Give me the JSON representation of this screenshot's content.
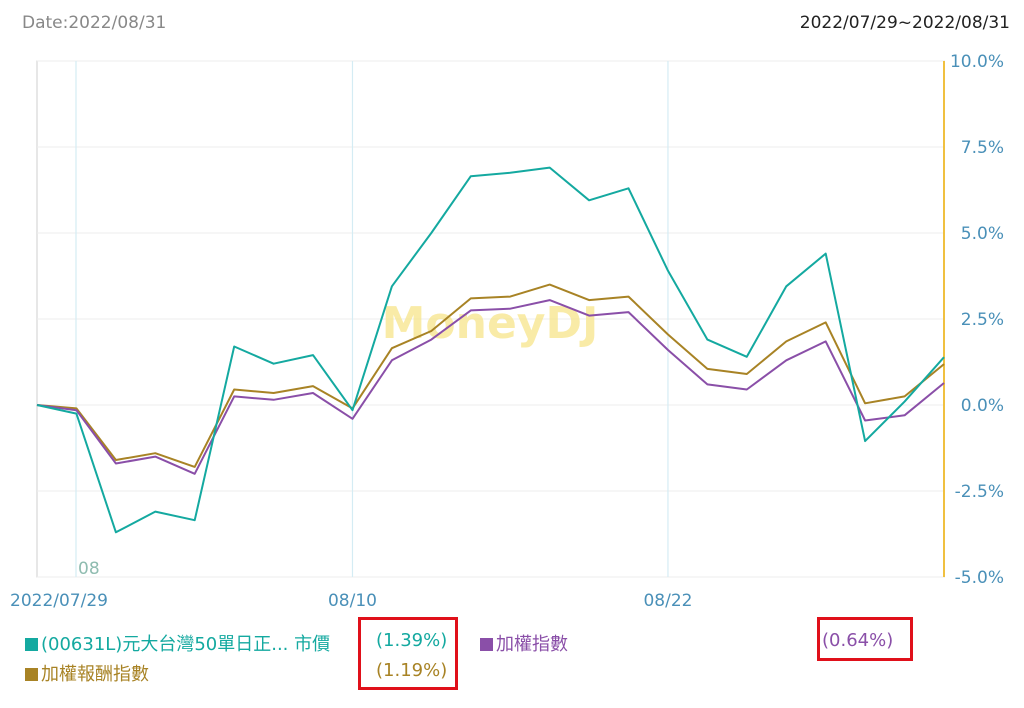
{
  "header": {
    "date_label": "Date:2022/08/31",
    "range_label": "2022/07/29~2022/08/31"
  },
  "watermark": "MoneyDJ",
  "chart_data": {
    "type": "line",
    "x": [
      "2022/07/29",
      "2022/08/01",
      "2022/08/02",
      "2022/08/03",
      "2022/08/04",
      "2022/08/05",
      "2022/08/08",
      "2022/08/09",
      "2022/08/10",
      "2022/08/11",
      "2022/08/12",
      "2022/08/15",
      "2022/08/16",
      "2022/08/17",
      "2022/08/18",
      "2022/08/19",
      "2022/08/22",
      "2022/08/23",
      "2022/08/24",
      "2022/08/25",
      "2022/08/26",
      "2022/08/29",
      "2022/08/30",
      "2022/08/31"
    ],
    "x_tick_labels": [
      "2022/07/29",
      "08/10",
      "08/22"
    ],
    "x_tick_index": [
      0,
      8,
      16
    ],
    "minor_label": "08",
    "y_axis_position": "right",
    "y_ticks": [
      "10.0%",
      "7.5%",
      "5.0%",
      "2.5%",
      "0.0%",
      "-2.5%",
      "-5.0%"
    ],
    "ylim": [
      -5.0,
      10.0
    ],
    "grid": true,
    "series": [
      {
        "name": "(00631L)元大台灣50單日正... 市價",
        "color": "#14a9a0",
        "values": [
          0.0,
          -0.25,
          -3.7,
          -3.1,
          -3.35,
          1.7,
          1.2,
          1.45,
          -0.15,
          3.45,
          5.0,
          6.65,
          6.75,
          6.9,
          5.95,
          6.3,
          3.9,
          1.9,
          1.4,
          3.45,
          4.4,
          -1.05,
          0.1,
          1.39
        ]
      },
      {
        "name": "加權指數",
        "color": "#8a4fa8",
        "values": [
          0.0,
          -0.15,
          -1.7,
          -1.5,
          -2.0,
          0.25,
          0.15,
          0.35,
          -0.4,
          1.3,
          1.9,
          2.75,
          2.8,
          3.05,
          2.6,
          2.7,
          1.6,
          0.6,
          0.45,
          1.3,
          1.85,
          -0.45,
          -0.3,
          0.64
        ]
      },
      {
        "name": "加權報酬指數",
        "color": "#a88325",
        "values": [
          0.0,
          -0.1,
          -1.6,
          -1.4,
          -1.8,
          0.45,
          0.35,
          0.55,
          -0.1,
          1.65,
          2.15,
          3.1,
          3.15,
          3.5,
          3.05,
          3.15,
          2.05,
          1.05,
          0.9,
          1.85,
          2.4,
          0.05,
          0.25,
          1.19
        ]
      }
    ]
  },
  "legend": {
    "s1_label": "(00631L)元大台灣50單日正... 市價",
    "s1_value": "(1.39%)",
    "s2_label": "加權指數",
    "s2_value": "(0.64%)",
    "s3_label": "加權報酬指數",
    "s3_value": "(1.19%)",
    "highlight_color": "#e0101a"
  }
}
